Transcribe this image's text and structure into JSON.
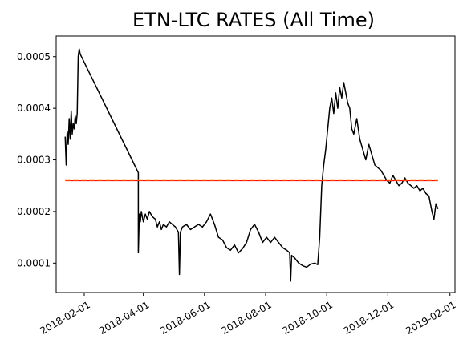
{
  "chart_data": {
    "type": "line",
    "title": "ETN-LTC RATES (All Time)",
    "xlabel": "",
    "ylabel": "",
    "x_tick_labels": [
      "2018-02-01",
      "2018-04-01",
      "2018-06-01",
      "2018-08-01",
      "2018-10-01",
      "2018-12-01",
      "2019-02-01"
    ],
    "y_tick_labels": [
      "0.0001",
      "0.0002",
      "0.0003",
      "0.0004",
      "0.0005"
    ],
    "y_ticks": [
      0.0001,
      0.0002,
      0.0003,
      0.0004,
      0.0005
    ],
    "xlim": [
      "2018-01-04",
      "2019-02-06"
    ],
    "ylim": [
      4.3e-05,
      0.00054
    ],
    "grid": false,
    "series": [
      {
        "color": "#000000",
        "style": "solid",
        "x": [
          "2018-01-13",
          "2018-01-14",
          "2018-01-15",
          "2018-01-16",
          "2018-01-17",
          "2018-01-18",
          "2018-01-19",
          "2018-01-20",
          "2018-01-21",
          "2018-01-22",
          "2018-01-23",
          "2018-01-24",
          "2018-01-25",
          "2018-01-26",
          "2018-01-27",
          "2018-01-28",
          "2018-03-27",
          "2018-03-27",
          "2018-03-28",
          "2018-03-29",
          "2018-03-30",
          "2018-04-01",
          "2018-04-03",
          "2018-04-05",
          "2018-04-07",
          "2018-04-10",
          "2018-04-13",
          "2018-04-15",
          "2018-04-17",
          "2018-04-19",
          "2018-04-21",
          "2018-04-24",
          "2018-04-27",
          "2018-04-30",
          "2018-05-03",
          "2018-05-06",
          "2018-05-07",
          "2018-05-08",
          "2018-05-10",
          "2018-05-14",
          "2018-05-18",
          "2018-05-22",
          "2018-05-26",
          "2018-05-30",
          "2018-06-03",
          "2018-06-07",
          "2018-06-11",
          "2018-06-15",
          "2018-06-19",
          "2018-06-23",
          "2018-06-27",
          "2018-07-01",
          "2018-07-05",
          "2018-07-09",
          "2018-07-13",
          "2018-07-17",
          "2018-07-21",
          "2018-07-25",
          "2018-07-29",
          "2018-08-02",
          "2018-08-06",
          "2018-08-10",
          "2018-08-14",
          "2018-08-18",
          "2018-08-22",
          "2018-08-25",
          "2018-08-26",
          "2018-08-27",
          "2018-08-30",
          "2018-09-03",
          "2018-09-07",
          "2018-09-11",
          "2018-09-15",
          "2018-09-19",
          "2018-09-22",
          "2018-09-24",
          "2018-09-26",
          "2018-09-28",
          "2018-09-30",
          "2018-10-02",
          "2018-10-04",
          "2018-10-06",
          "2018-10-08",
          "2018-10-10",
          "2018-10-12",
          "2018-10-14",
          "2018-10-16",
          "2018-10-18",
          "2018-10-20",
          "2018-10-22",
          "2018-10-24",
          "2018-10-26",
          "2018-10-28",
          "2018-10-31",
          "2018-11-03",
          "2018-11-06",
          "2018-11-09",
          "2018-11-12",
          "2018-11-15",
          "2018-11-18",
          "2018-11-21",
          "2018-11-24",
          "2018-11-27",
          "2018-11-30",
          "2018-12-03",
          "2018-12-06",
          "2018-12-09",
          "2018-12-12",
          "2018-12-15",
          "2018-12-18",
          "2018-12-21",
          "2018-12-24",
          "2018-12-27",
          "2018-12-30",
          "2019-01-02",
          "2019-01-05",
          "2019-01-08",
          "2019-01-11",
          "2019-01-14",
          "2019-01-16",
          "2019-01-18",
          "2019-01-20"
        ],
        "values": [
          0.000345,
          0.00029,
          0.000355,
          0.00033,
          0.00038,
          0.00034,
          0.000395,
          0.00035,
          0.00037,
          0.00036,
          0.000385,
          0.00037,
          0.00039,
          0.0005,
          0.000515,
          0.000505,
          0.000275,
          0.00012,
          0.000195,
          0.00018,
          0.0002,
          0.00018,
          0.000195,
          0.000185,
          0.0002,
          0.00019,
          0.000185,
          0.00017,
          0.00018,
          0.000165,
          0.000175,
          0.00017,
          0.00018,
          0.000175,
          0.00017,
          0.00016,
          7.8e-05,
          0.00016,
          0.00017,
          0.000175,
          0.000165,
          0.00017,
          0.000175,
          0.00017,
          0.00018,
          0.000195,
          0.000175,
          0.00015,
          0.000145,
          0.00013,
          0.000125,
          0.000135,
          0.00012,
          0.000128,
          0.00014,
          0.000165,
          0.000175,
          0.00016,
          0.00014,
          0.00015,
          0.00014,
          0.00015,
          0.00014,
          0.00013,
          0.000125,
          0.00012,
          6.5e-05,
          0.000115,
          0.00011,
          0.0001,
          9.5e-05,
          9.2e-05,
          9.8e-05,
          0.0001,
          9.7e-05,
          0.00015,
          0.00025,
          0.00029,
          0.00032,
          0.00036,
          0.0004,
          0.00042,
          0.00039,
          0.00043,
          0.0004,
          0.00044,
          0.00042,
          0.00045,
          0.00043,
          0.00041,
          0.0004,
          0.00036,
          0.00035,
          0.00038,
          0.00034,
          0.00032,
          0.0003,
          0.00033,
          0.00031,
          0.00029,
          0.000285,
          0.00028,
          0.00027,
          0.00026,
          0.000255,
          0.00027,
          0.00026,
          0.00025,
          0.000255,
          0.000265,
          0.000255,
          0.00025,
          0.000245,
          0.00025,
          0.00024,
          0.000245,
          0.000235,
          0.00023,
          0.0002,
          0.000185,
          0.000215,
          0.000205
        ]
      },
      {
        "color": "#ff0000",
        "style": "solid",
        "x": [
          "2018-01-13",
          "2019-01-20"
        ],
        "values": [
          0.00026,
          0.00026
        ]
      },
      {
        "color": "#ff7f0e",
        "style": "dashed",
        "x": [
          "2018-01-13",
          "2019-01-20"
        ],
        "values": [
          0.000261,
          0.000261
        ]
      }
    ]
  }
}
